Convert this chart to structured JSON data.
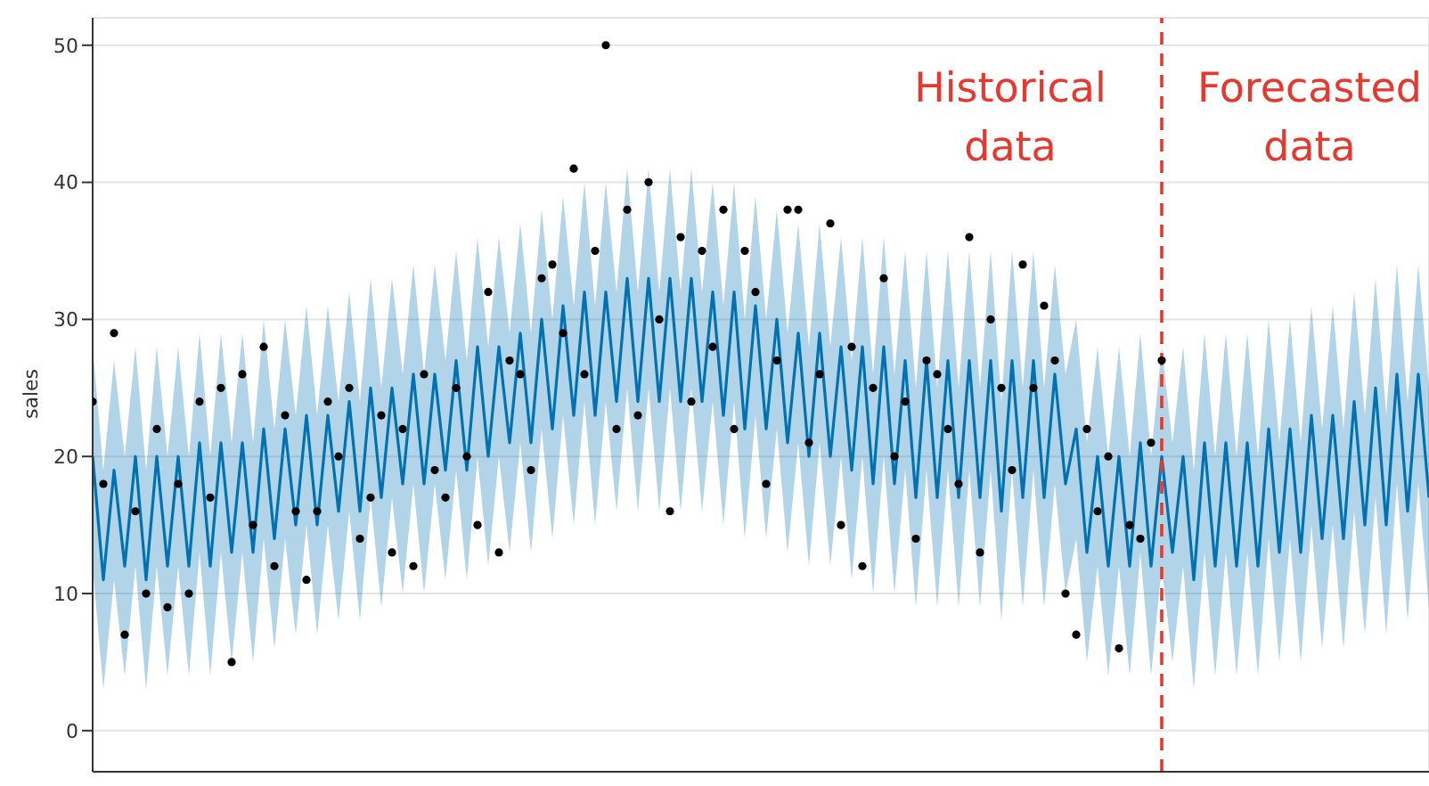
{
  "chart_data": {
    "type": "line",
    "ylabel": "sales",
    "categories": [
      null,
      null,
      null,
      null,
      null,
      null,
      null,
      null,
      null,
      null,
      null,
      null,
      null,
      null,
      null,
      null,
      null,
      null,
      null,
      null,
      null,
      null,
      null,
      null,
      null,
      null,
      null,
      null,
      null,
      null,
      null,
      null,
      null,
      null,
      null,
      null,
      null,
      null,
      null,
      null,
      null,
      null,
      null,
      null,
      null,
      null,
      null,
      null,
      null,
      null,
      null,
      null,
      null,
      null,
      null,
      null,
      null,
      null,
      null,
      null,
      null,
      null,
      null,
      null,
      null,
      null,
      null,
      null,
      null,
      null,
      null,
      null,
      null,
      null,
      null,
      null,
      null,
      null,
      null,
      null,
      null,
      null,
      null,
      null,
      null,
      null,
      null,
      null,
      null,
      null,
      null,
      null,
      null,
      null,
      null,
      null,
      null,
      null,
      null,
      null,
      null,
      null,
      null,
      null,
      null,
      null,
      null,
      null,
      null,
      null,
      null,
      null,
      null,
      null,
      null,
      null,
      null,
      null,
      null,
      null,
      null,
      null,
      null,
      null,
      null,
      null
    ],
    "series": [
      {
        "color": "#0072b2",
        "values": [
          20,
          11,
          19,
          12,
          20,
          11,
          20,
          12,
          20,
          12,
          21,
          12,
          21,
          13,
          21,
          13,
          22,
          14,
          22,
          15,
          23,
          15,
          23,
          16,
          24,
          16,
          25,
          17,
          25,
          18,
          26,
          18,
          26,
          19,
          27,
          19,
          28,
          20,
          28,
          21,
          29,
          21,
          30,
          22,
          31,
          23,
          32,
          23,
          32,
          24,
          33,
          24,
          33,
          24,
          33,
          24,
          33,
          24,
          32,
          23,
          32,
          22,
          31,
          22,
          30,
          21,
          29,
          20,
          29,
          20,
          28,
          19,
          28,
          18,
          28,
          18,
          27,
          17,
          27,
          17,
          27,
          17,
          27,
          17,
          27,
          16,
          27,
          17,
          27,
          17,
          26,
          18,
          22,
          13,
          20,
          12,
          20,
          12,
          21,
          12,
          20,
          13,
          20,
          11,
          21,
          12,
          21,
          12,
          21,
          12,
          22,
          13,
          22,
          13,
          23,
          14,
          23,
          14,
          24,
          15,
          25,
          15,
          26,
          16,
          26,
          17
        ],
        "lower": [
          12,
          3,
          11,
          4,
          12,
          3,
          12,
          4,
          12,
          4,
          13,
          4,
          13,
          5,
          13,
          5,
          14,
          6,
          14,
          7,
          15,
          7,
          15,
          8,
          16,
          8,
          17,
          9,
          17,
          10,
          18,
          10,
          18,
          11,
          19,
          11,
          20,
          12,
          20,
          13,
          21,
          13,
          22,
          14,
          23,
          15,
          24,
          15,
          24,
          16,
          25,
          16,
          25,
          16,
          25,
          16,
          25,
          16,
          24,
          15,
          24,
          14,
          23,
          14,
          22,
          13,
          21,
          12,
          21,
          12,
          20,
          11,
          20,
          10,
          20,
          10,
          19,
          9,
          19,
          9,
          19,
          9,
          19,
          9,
          19,
          8,
          19,
          9,
          19,
          9,
          18,
          10,
          14,
          5,
          12,
          4,
          12,
          4,
          13,
          4,
          12,
          5,
          12,
          3,
          13,
          4,
          13,
          4,
          13,
          4,
          14,
          5,
          14,
          5,
          15,
          6,
          15,
          6,
          16,
          7,
          17,
          7,
          18,
          8,
          18,
          9
        ],
        "upper": [
          28,
          19,
          27,
          20,
          28,
          19,
          28,
          20,
          28,
          20,
          29,
          20,
          29,
          21,
          29,
          21,
          30,
          22,
          30,
          23,
          31,
          23,
          31,
          24,
          32,
          24,
          33,
          25,
          33,
          26,
          34,
          26,
          34,
          27,
          35,
          27,
          36,
          28,
          36,
          29,
          37,
          29,
          38,
          30,
          39,
          31,
          40,
          31,
          40,
          32,
          41,
          32,
          41,
          32,
          41,
          32,
          41,
          32,
          40,
          31,
          40,
          30,
          39,
          30,
          38,
          29,
          37,
          28,
          37,
          28,
          36,
          27,
          36,
          26,
          36,
          26,
          35,
          25,
          35,
          25,
          35,
          25,
          35,
          25,
          35,
          24,
          35,
          25,
          35,
          25,
          34,
          26,
          30,
          21,
          28,
          20,
          28,
          20,
          29,
          20,
          28,
          21,
          28,
          19,
          29,
          20,
          29,
          20,
          29,
          20,
          30,
          21,
          30,
          21,
          31,
          22,
          31,
          22,
          32,
          23,
          33,
          23,
          34,
          24,
          34,
          25
        ]
      },
      {
        "type": "scatter",
        "marker": "circle",
        "color": "#000000",
        "values": [
          24,
          18,
          29,
          7,
          16,
          10,
          22,
          9,
          18,
          10,
          24,
          17,
          25,
          5,
          26,
          15,
          28,
          12,
          23,
          16,
          11,
          16,
          24,
          20,
          25,
          14,
          17,
          23,
          13,
          22,
          12,
          26,
          19,
          17,
          25,
          20,
          15,
          32,
          13,
          27,
          26,
          19,
          33,
          34,
          29,
          41,
          26,
          35,
          50,
          22,
          38,
          23,
          40,
          30,
          16,
          36,
          24,
          35,
          28,
          38,
          22,
          35,
          32,
          18,
          27,
          38,
          38,
          21,
          26,
          37,
          15,
          28,
          12,
          25,
          33,
          20,
          24,
          14,
          27,
          26,
          22,
          18,
          36,
          13,
          30,
          25,
          19,
          34,
          25,
          31,
          27,
          10,
          7,
          22,
          16,
          20,
          6,
          15,
          14,
          21,
          27,
          null,
          null,
          null,
          null,
          null,
          null,
          null,
          null,
          null,
          null,
          null,
          null,
          null,
          null,
          null,
          null,
          null,
          null,
          null,
          null,
          null,
          null,
          null,
          null,
          null
        ]
      }
    ],
    "ylim": [
      -3,
      52
    ],
    "yticks": [
      0,
      10,
      20,
      30,
      40,
      50
    ],
    "grid": true,
    "tick_labels": "y",
    "annotations": [
      "Historical data",
      "Forecasted data"
    ]
  }
}
